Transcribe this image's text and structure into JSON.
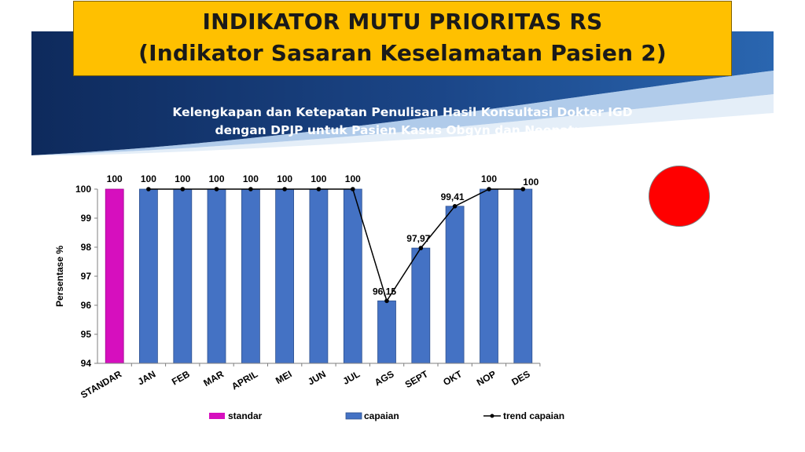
{
  "header": {
    "title_line1": "INDIKATOR MUTU PRIORITAS RS",
    "title_line2": "(Indikator Sasaran Keselamatan Pasien 2)"
  },
  "subtitle": {
    "line1": "Kelengkapan dan Ketepatan Penulisan Hasil Konsultasi Dokter IGD",
    "line2": "dengan DPJP untuk Pasien Kasus Obgyn dan Neonatus"
  },
  "status_indicator": {
    "color": "#ff0000"
  },
  "colors": {
    "banner_top": "#0e2a5c",
    "banner_accent": "#1f5fa8",
    "title_bg": "#ffc000",
    "standar": "#d60fbe",
    "capaian": "#4472c4",
    "trend": "#000000"
  },
  "chart_data": {
    "type": "bar",
    "ylabel": "Persentase %",
    "ylim": [
      94,
      100
    ],
    "yticks": [
      "94",
      "95",
      "96",
      "97",
      "98",
      "99",
      "100"
    ],
    "categories": [
      "STANDAR",
      "JAN",
      "FEB",
      "MAR",
      "APRIL",
      "MEI",
      "JUN",
      "JUL",
      "AGS",
      "SEPT",
      "OKT",
      "NOP",
      "DES"
    ],
    "series": [
      {
        "name": "standar",
        "type": "bar",
        "values": [
          100,
          null,
          null,
          null,
          null,
          null,
          null,
          null,
          null,
          null,
          null,
          null,
          null
        ],
        "labels": [
          "100",
          "",
          "",
          "",
          "",
          "",
          "",
          "",
          "",
          "",
          "",
          "",
          ""
        ]
      },
      {
        "name": "capaian",
        "type": "bar",
        "values": [
          null,
          100,
          100,
          100,
          100,
          100,
          100,
          100,
          96.15,
          97.97,
          99.41,
          100,
          100
        ],
        "labels": [
          "",
          "100",
          "100",
          "100",
          "100",
          "100",
          "100",
          "100",
          "96,15",
          "97,97",
          "99,41",
          "100",
          "100"
        ]
      },
      {
        "name": "trend capaian",
        "type": "line",
        "values": [
          null,
          100,
          100,
          100,
          100,
          100,
          100,
          100,
          96.15,
          97.97,
          99.41,
          100,
          100
        ]
      }
    ],
    "legend": [
      "standar",
      "capaian",
      "trend capaian"
    ],
    "legend_position": "bottom",
    "grid": false
  }
}
